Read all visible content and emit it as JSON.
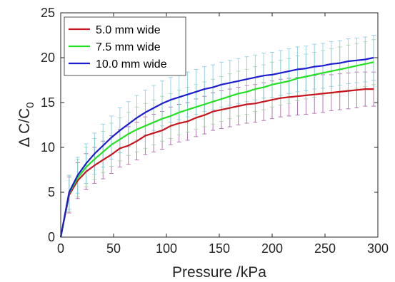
{
  "chart_data": {
    "type": "line",
    "xlabel": "Pressure /kPa",
    "ylabel": "Δ C/C",
    "ylabel_subscript": "0",
    "xlim": [
      0,
      300
    ],
    "ylim": [
      0,
      25
    ],
    "xticks": [
      "0",
      "50",
      "100",
      "150",
      "200",
      "250",
      "300"
    ],
    "yticks": [
      "0",
      "5",
      "10",
      "15",
      "20",
      "25"
    ],
    "grid": false,
    "legend_position": "top-left",
    "x": [
      0,
      8,
      16,
      24,
      32,
      40,
      48,
      56,
      64,
      72,
      80,
      88,
      96,
      104,
      112,
      120,
      128,
      136,
      144,
      152,
      160,
      168,
      176,
      184,
      192,
      200,
      208,
      216,
      224,
      232,
      240,
      248,
      256,
      264,
      272,
      280,
      288,
      296
    ],
    "series": [
      {
        "name": "5.0 mm wide",
        "color": "#c8141e",
        "error_color": "#a0509a",
        "values": [
          0,
          4.7,
          6.3,
          7.3,
          8.0,
          8.6,
          9.2,
          9.9,
          10.2,
          10.7,
          11.3,
          11.6,
          11.9,
          12.4,
          12.7,
          12.9,
          13.3,
          13.6,
          14.0,
          14.2,
          14.4,
          14.6,
          14.8,
          14.9,
          15.1,
          15.3,
          15.5,
          15.6,
          15.7,
          15.8,
          15.9,
          16.0,
          16.1,
          16.2,
          16.3,
          16.4,
          16.5,
          16.5
        ],
        "errors": [
          0,
          2.0,
          2.0,
          2.0,
          2.0,
          2.1,
          2.1,
          2.1,
          2.1,
          2.1,
          2.1,
          2.1,
          2.1,
          2.1,
          2.1,
          2.1,
          2.1,
          2.1,
          2.1,
          2.1,
          2.1,
          2.1,
          2.1,
          2.1,
          2.1,
          2.1,
          2.1,
          2.1,
          2.1,
          2.1,
          2.1,
          2.1,
          2.0,
          2.0,
          2.0,
          2.0,
          1.9,
          1.9
        ]
      },
      {
        "name": "7.5 mm wide",
        "color": "#22e022",
        "error_color": "#9ad3a0",
        "values": [
          0,
          4.9,
          6.6,
          7.8,
          8.7,
          9.5,
          10.3,
          10.9,
          11.5,
          12.0,
          12.4,
          12.8,
          13.2,
          13.5,
          13.9,
          14.2,
          14.5,
          14.8,
          15.1,
          15.4,
          15.7,
          16.0,
          16.2,
          16.5,
          16.7,
          17.0,
          17.2,
          17.4,
          17.7,
          17.9,
          18.1,
          18.3,
          18.5,
          18.7,
          18.9,
          19.1,
          19.3,
          19.5
        ],
        "errors": [
          0,
          2.0,
          2.1,
          2.2,
          2.3,
          2.3,
          2.4,
          2.4,
          2.4,
          2.5,
          2.5,
          2.5,
          2.5,
          2.5,
          2.5,
          2.5,
          2.5,
          2.5,
          2.5,
          2.5,
          2.5,
          2.5,
          2.5,
          2.5,
          2.5,
          2.5,
          2.5,
          2.5,
          2.5,
          2.5,
          2.5,
          2.5,
          2.5,
          2.5,
          2.5,
          2.5,
          2.5,
          2.5
        ]
      },
      {
        "name": "10.0 mm wide",
        "color": "#1c1cd0",
        "error_color": "#7ec8e0",
        "values": [
          0,
          5.0,
          6.9,
          8.2,
          9.3,
          10.2,
          11.1,
          11.9,
          12.6,
          13.3,
          13.9,
          14.4,
          14.9,
          15.3,
          15.6,
          15.9,
          16.2,
          16.5,
          16.7,
          17.0,
          17.2,
          17.4,
          17.6,
          17.8,
          18.0,
          18.1,
          18.3,
          18.5,
          18.7,
          18.8,
          19.0,
          19.1,
          19.3,
          19.4,
          19.6,
          19.7,
          19.8,
          20.0
        ],
        "errors": [
          0,
          1.9,
          2.0,
          2.2,
          2.3,
          2.4,
          2.4,
          2.5,
          2.5,
          2.5,
          2.5,
          2.5,
          2.5,
          2.5,
          2.5,
          2.5,
          2.5,
          2.5,
          2.5,
          2.5,
          2.5,
          2.5,
          2.5,
          2.5,
          2.5,
          2.5,
          2.5,
          2.5,
          2.5,
          2.5,
          2.5,
          2.5,
          2.5,
          2.5,
          2.5,
          2.5,
          2.5,
          2.5
        ]
      }
    ]
  }
}
